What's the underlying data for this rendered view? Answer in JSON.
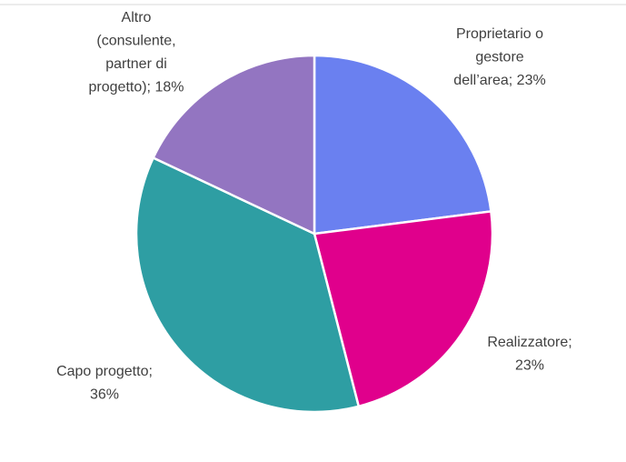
{
  "chart_data": {
    "type": "pie",
    "values": [
      23,
      23,
      36,
      18
    ],
    "value_labels": [
      [
        "Proprietario o",
        "gestore",
        "dell’area; 23%"
      ],
      [
        "Realizzatore;",
        "23%"
      ],
      [
        "Capo progetto;",
        "36%"
      ],
      [
        "Altro",
        "(consulente,",
        "partner di",
        "progetto); 18%"
      ]
    ],
    "colors": [
      "#6a80f0",
      "#e0008c",
      "#2e9ea3",
      "#9375c1"
    ]
  }
}
